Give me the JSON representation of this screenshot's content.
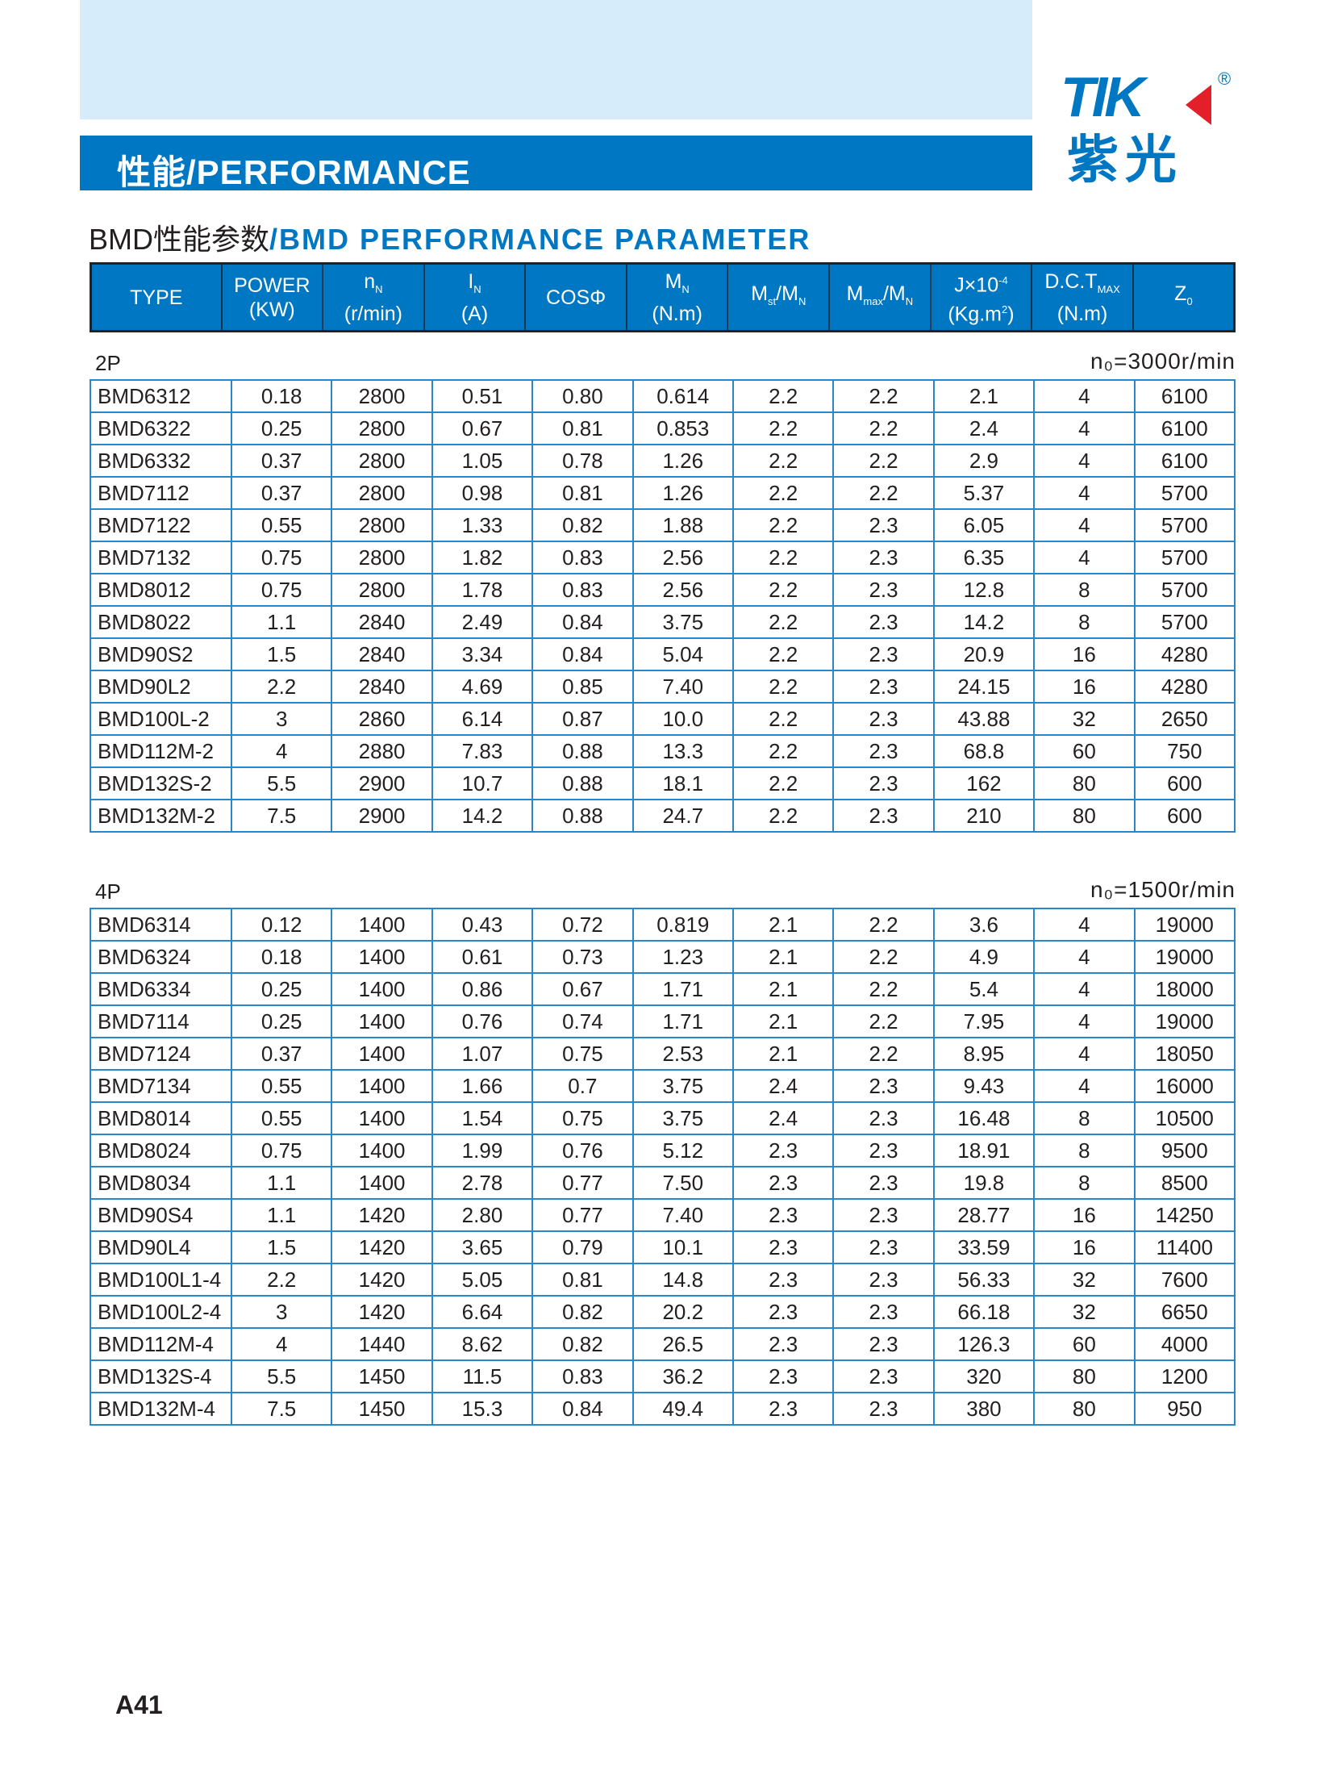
{
  "banner": {
    "title": "性能/PERFORMANCE"
  },
  "logo": {
    "mark": "TIK",
    "reg": "®",
    "cn": "紫光"
  },
  "subtitle": {
    "cn": "BMD性能参数",
    "en": "/BMD PERFORMANCE PARAMETER"
  },
  "colors": {
    "brand": "#0077c2",
    "accent": "#e3202a",
    "band": "#d6ecfa"
  },
  "columns": [
    {
      "l1": "TYPE",
      "l2": ""
    },
    {
      "l1": "POWER",
      "l2": "(KW)"
    },
    {
      "l1": "n",
      "sub": "N",
      "l2": "(r/min)"
    },
    {
      "l1": "I",
      "sub": "N",
      "l2": "(A)"
    },
    {
      "l1": "COSΦ",
      "l2": ""
    },
    {
      "l1": "M",
      "sub": "N",
      "l2": "(N.m)"
    },
    {
      "l1": "M",
      "sub": "st",
      "l1b": "/M",
      "sub2": "N",
      "l2": ""
    },
    {
      "l1": "M",
      "sub": "max",
      "l1b": "/M",
      "sub2": "N",
      "l2": ""
    },
    {
      "l1": "J×10",
      "sup": "-4",
      "l2": "(Kg.m",
      "sup2": "2",
      "l2b": ")"
    },
    {
      "l1": "D.C.T",
      "sub": "MAX",
      "l2": "(N.m)"
    },
    {
      "l1": "Z",
      "sub": "0",
      "l2": ""
    }
  ],
  "groups": [
    {
      "label": "2P",
      "speed": "n₀=3000r/min",
      "rows": [
        [
          "BMD6312",
          "0.18",
          "2800",
          "0.51",
          "0.80",
          "0.614",
          "2.2",
          "2.2",
          "2.1",
          "4",
          "6100"
        ],
        [
          "BMD6322",
          "0.25",
          "2800",
          "0.67",
          "0.81",
          "0.853",
          "2.2",
          "2.2",
          "2.4",
          "4",
          "6100"
        ],
        [
          "BMD6332",
          "0.37",
          "2800",
          "1.05",
          "0.78",
          "1.26",
          "2.2",
          "2.2",
          "2.9",
          "4",
          "6100"
        ],
        [
          "BMD7112",
          "0.37",
          "2800",
          "0.98",
          "0.81",
          "1.26",
          "2.2",
          "2.2",
          "5.37",
          "4",
          "5700"
        ],
        [
          "BMD7122",
          "0.55",
          "2800",
          "1.33",
          "0.82",
          "1.88",
          "2.2",
          "2.3",
          "6.05",
          "4",
          "5700"
        ],
        [
          "BMD7132",
          "0.75",
          "2800",
          "1.82",
          "0.83",
          "2.56",
          "2.2",
          "2.3",
          "6.35",
          "4",
          "5700"
        ],
        [
          "BMD8012",
          "0.75",
          "2800",
          "1.78",
          "0.83",
          "2.56",
          "2.2",
          "2.3",
          "12.8",
          "8",
          "5700"
        ],
        [
          "BMD8022",
          "1.1",
          "2840",
          "2.49",
          "0.84",
          "3.75",
          "2.2",
          "2.3",
          "14.2",
          "8",
          "5700"
        ],
        [
          "BMD90S2",
          "1.5",
          "2840",
          "3.34",
          "0.84",
          "5.04",
          "2.2",
          "2.3",
          "20.9",
          "16",
          "4280"
        ],
        [
          "BMD90L2",
          "2.2",
          "2840",
          "4.69",
          "0.85",
          "7.40",
          "2.2",
          "2.3",
          "24.15",
          "16",
          "4280"
        ],
        [
          "BMD100L-2",
          "3",
          "2860",
          "6.14",
          "0.87",
          "10.0",
          "2.2",
          "2.3",
          "43.88",
          "32",
          "2650"
        ],
        [
          "BMD112M-2",
          "4",
          "2880",
          "7.83",
          "0.88",
          "13.3",
          "2.2",
          "2.3",
          "68.8",
          "60",
          "750"
        ],
        [
          "BMD132S-2",
          "5.5",
          "2900",
          "10.7",
          "0.88",
          "18.1",
          "2.2",
          "2.3",
          "162",
          "80",
          "600"
        ],
        [
          "BMD132M-2",
          "7.5",
          "2900",
          "14.2",
          "0.88",
          "24.7",
          "2.2",
          "2.3",
          "210",
          "80",
          "600"
        ]
      ]
    },
    {
      "label": "4P",
      "speed": "n₀=1500r/min",
      "rows": [
        [
          "BMD6314",
          "0.12",
          "1400",
          "0.43",
          "0.72",
          "0.819",
          "2.1",
          "2.2",
          "3.6",
          "4",
          "19000"
        ],
        [
          "BMD6324",
          "0.18",
          "1400",
          "0.61",
          "0.73",
          "1.23",
          "2.1",
          "2.2",
          "4.9",
          "4",
          "19000"
        ],
        [
          "BMD6334",
          "0.25",
          "1400",
          "0.86",
          "0.67",
          "1.71",
          "2.1",
          "2.2",
          "5.4",
          "4",
          "18000"
        ],
        [
          "BMD7114",
          "0.25",
          "1400",
          "0.76",
          "0.74",
          "1.71",
          "2.1",
          "2.2",
          "7.95",
          "4",
          "19000"
        ],
        [
          "BMD7124",
          "0.37",
          "1400",
          "1.07",
          "0.75",
          "2.53",
          "2.1",
          "2.2",
          "8.95",
          "4",
          "18050"
        ],
        [
          "BMD7134",
          "0.55",
          "1400",
          "1.66",
          "0.7",
          "3.75",
          "2.4",
          "2.3",
          "9.43",
          "4",
          "16000"
        ],
        [
          "BMD8014",
          "0.55",
          "1400",
          "1.54",
          "0.75",
          "3.75",
          "2.4",
          "2.3",
          "16.48",
          "8",
          "10500"
        ],
        [
          "BMD8024",
          "0.75",
          "1400",
          "1.99",
          "0.76",
          "5.12",
          "2.3",
          "2.3",
          "18.91",
          "8",
          "9500"
        ],
        [
          "BMD8034",
          "1.1",
          "1400",
          "2.78",
          "0.77",
          "7.50",
          "2.3",
          "2.3",
          "19.8",
          "8",
          "8500"
        ],
        [
          "BMD90S4",
          "1.1",
          "1420",
          "2.80",
          "0.77",
          "7.40",
          "2.3",
          "2.3",
          "28.77",
          "16",
          "14250"
        ],
        [
          "BMD90L4",
          "1.5",
          "1420",
          "3.65",
          "0.79",
          "10.1",
          "2.3",
          "2.3",
          "33.59",
          "16",
          "11400"
        ],
        [
          "BMD100L1-4",
          "2.2",
          "1420",
          "5.05",
          "0.81",
          "14.8",
          "2.3",
          "2.3",
          "56.33",
          "32",
          "7600"
        ],
        [
          "BMD100L2-4",
          "3",
          "1420",
          "6.64",
          "0.82",
          "20.2",
          "2.3",
          "2.3",
          "66.18",
          "32",
          "6650"
        ],
        [
          "BMD112M-4",
          "4",
          "1440",
          "8.62",
          "0.82",
          "26.5",
          "2.3",
          "2.3",
          "126.3",
          "60",
          "4000"
        ],
        [
          "BMD132S-4",
          "5.5",
          "1450",
          "11.5",
          "0.83",
          "36.2",
          "2.3",
          "2.3",
          "320",
          "80",
          "1200"
        ],
        [
          "BMD132M-4",
          "7.5",
          "1450",
          "15.3",
          "0.84",
          "49.4",
          "2.3",
          "2.3",
          "380",
          "80",
          "950"
        ]
      ]
    }
  ],
  "page_number": "A41"
}
